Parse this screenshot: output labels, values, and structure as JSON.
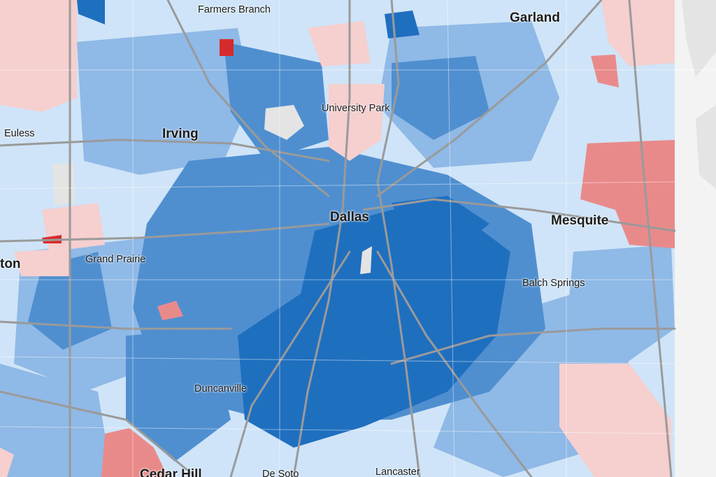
{
  "map": {
    "colors": {
      "dem_strong": "#1f6fbf",
      "dem_mid": "#4f8fd0",
      "dem_light": "#8fb9e6",
      "dem_faint": "#cfe4f8",
      "rep_light": "#f6cfcf",
      "rep_mid": "#e98a8a",
      "rep_strong": "#d62b2b",
      "no_data": "#e4e4e4",
      "outside": "#f3f3f3",
      "roads": "#9a9a9a"
    },
    "labels": [
      {
        "id": "farmers-branch",
        "text": "Farmers Branch"
      },
      {
        "id": "garland",
        "text": "Garland"
      },
      {
        "id": "university-park",
        "text": "University Park"
      },
      {
        "id": "euless",
        "text": "Euless"
      },
      {
        "id": "irving",
        "text": "Irving"
      },
      {
        "id": "dallas",
        "text": "Dallas"
      },
      {
        "id": "mesquite",
        "text": "Mesquite"
      },
      {
        "id": "grand-prairie",
        "text": "Grand Prairie"
      },
      {
        "id": "arlington-partial",
        "text": "ton"
      },
      {
        "id": "balch-springs",
        "text": "Balch Springs"
      },
      {
        "id": "duncanville",
        "text": "Duncanville"
      },
      {
        "id": "cedar-hill",
        "text": "Cedar Hill"
      },
      {
        "id": "de-soto",
        "text": "De Soto"
      },
      {
        "id": "lancaster",
        "text": "Lancaster"
      }
    ]
  }
}
